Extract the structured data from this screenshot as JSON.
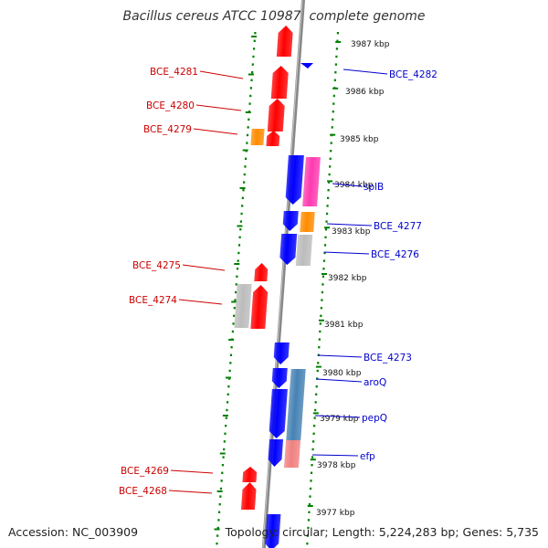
{
  "title": "Bacillus cereus ATCC 10987, complete genome",
  "accession": "Accession: NC_003909",
  "summary": "Topology: circular; Length: 5,224,283 bp; Genes: 5,735",
  "colors": {
    "forward": "#ff0000",
    "reverse": "#0000ff",
    "orange": "#ff8c00",
    "magenta": "#ff3ab0",
    "gray": "#bcbcbc",
    "steelblue": "#4682b4",
    "pink": "#f08080",
    "backbone": "#888888",
    "ticks": "#008000",
    "labelLeft": "#cc0000",
    "labelRight": "#0000cc"
  },
  "ruler": [
    {
      "label": "3987 kbp"
    },
    {
      "label": "3986 kbp"
    },
    {
      "label": "3985 kbp"
    },
    {
      "label": "3984 kbp"
    },
    {
      "label": "3983 kbp"
    },
    {
      "label": "3982 kbp"
    },
    {
      "label": "3981 kbp"
    },
    {
      "label": "3980 kbp"
    },
    {
      "label": "3979 kbp"
    },
    {
      "label": "3978 kbp"
    },
    {
      "label": "3977 kbp"
    }
  ],
  "leftLabels": [
    "BCE_4281",
    "BCE_4280",
    "BCE_4279",
    "BCE_4275",
    "BCE_4274",
    "BCE_4269",
    "BCE_4268"
  ],
  "rightLabels": [
    "BCE_4282",
    "splB",
    "BCE_4277",
    "BCE_4276",
    "BCE_4273",
    "aroQ",
    "pepQ",
    "efp"
  ]
}
